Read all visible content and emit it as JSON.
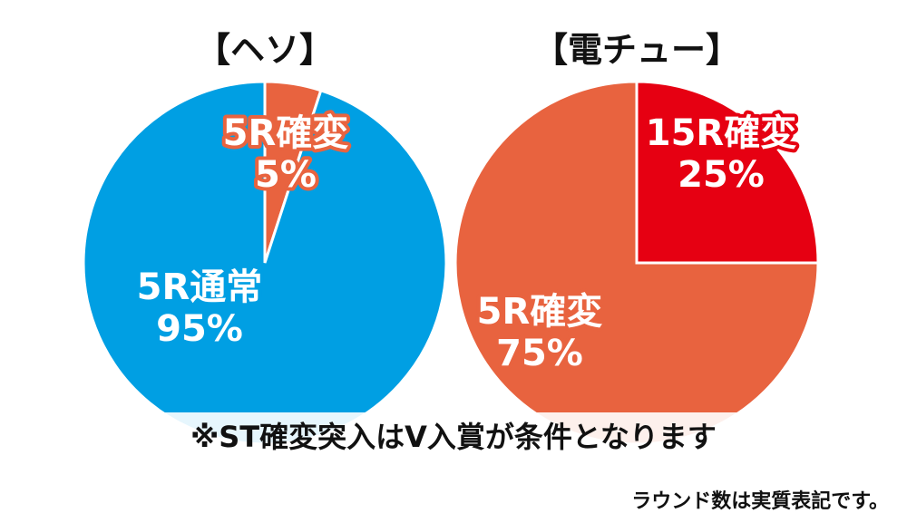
{
  "chart_data": [
    {
      "type": "pie",
      "title": "【ヘソ】",
      "slices": [
        {
          "label": "5R確変",
          "value": 5,
          "value_label": "5%",
          "color": "#e8633f"
        },
        {
          "label": "5R通常",
          "value": 95,
          "value_label": "95%",
          "color": "#009fe3"
        }
      ]
    },
    {
      "type": "pie",
      "title": "【電チュー】",
      "slices": [
        {
          "label": "15R確変",
          "value": 25,
          "value_label": "25%",
          "color": "#e60012"
        },
        {
          "label": "5R確変",
          "value": 75,
          "value_label": "75%",
          "color": "#e8633f"
        }
      ]
    }
  ],
  "note": "※ST確変突入はV入賞が条件となります",
  "footnote": "ラウンド数は実質表記です。"
}
